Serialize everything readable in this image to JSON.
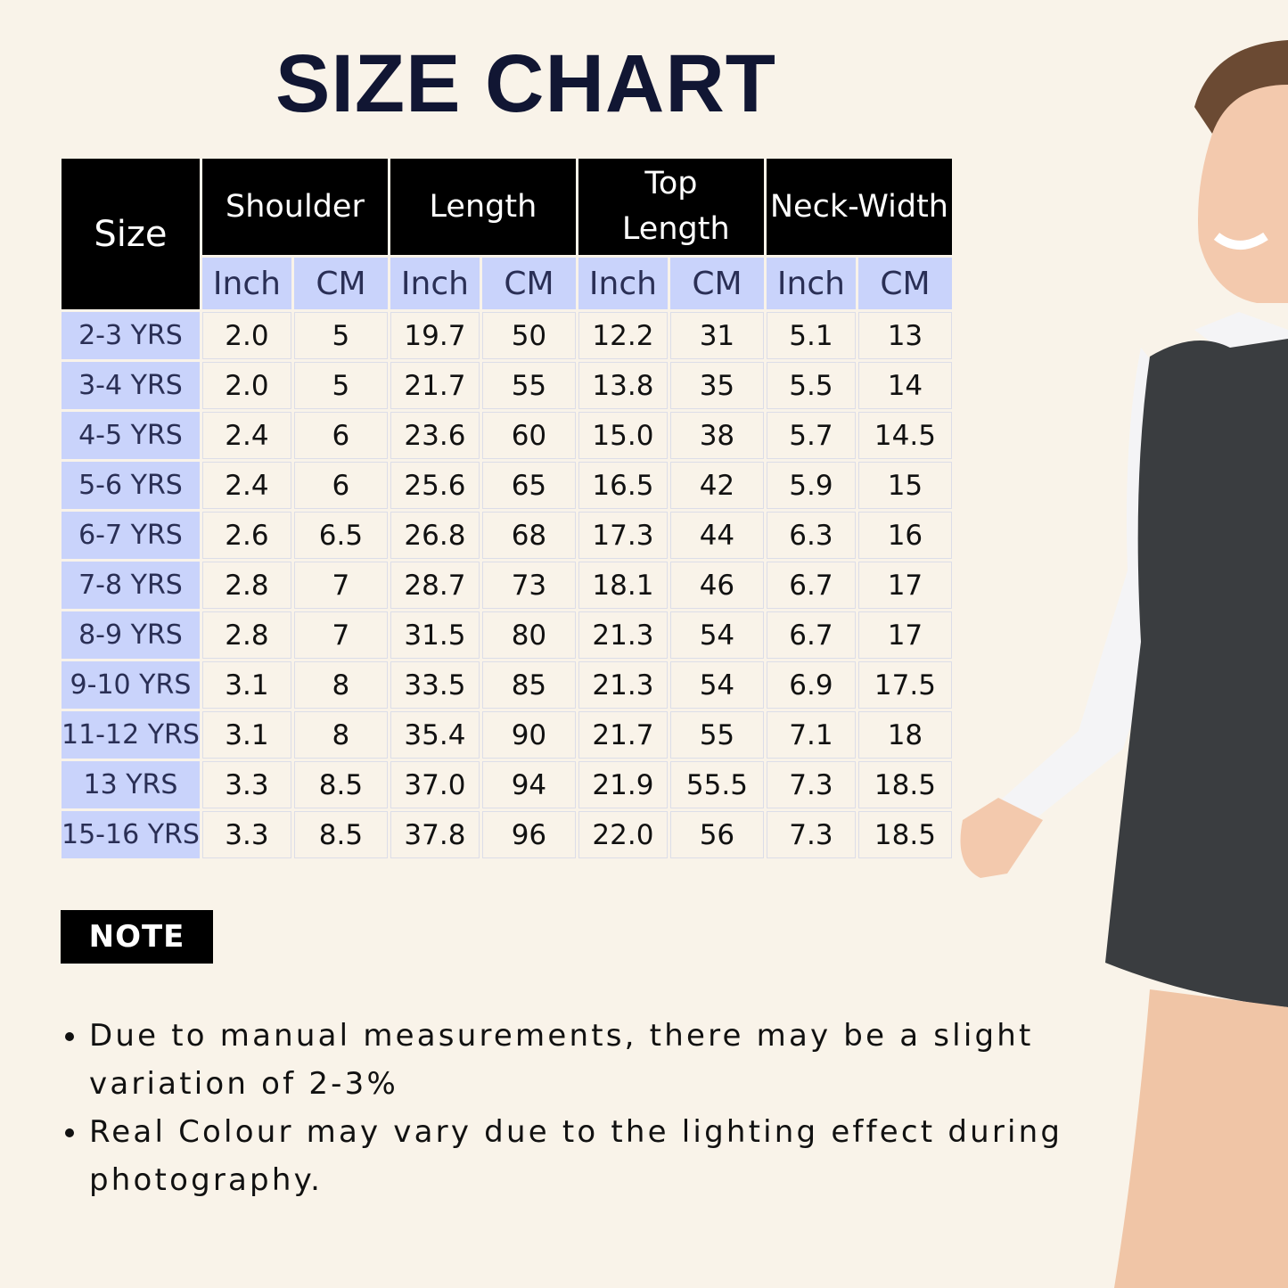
{
  "title": "SIZE CHART",
  "table": {
    "size_header": "Size",
    "groups": [
      "Shoulder",
      "Length",
      "Top Length",
      "Neck-Width"
    ],
    "units": [
      "Inch",
      "CM",
      "Inch",
      "CM",
      "Inch",
      "CM",
      "Inch",
      "CM"
    ],
    "rows": [
      [
        "2-3 YRS",
        "2.0",
        "5",
        "19.7",
        "50",
        "12.2",
        "31",
        "5.1",
        "13"
      ],
      [
        "3-4 YRS",
        "2.0",
        "5",
        "21.7",
        "55",
        "13.8",
        "35",
        "5.5",
        "14"
      ],
      [
        "4-5 YRS",
        "2.4",
        "6",
        "23.6",
        "60",
        "15.0",
        "38",
        "5.7",
        "14.5"
      ],
      [
        "5-6 YRS",
        "2.4",
        "6",
        "25.6",
        "65",
        "16.5",
        "42",
        "5.9",
        "15"
      ],
      [
        "6-7 YRS",
        "2.6",
        "6.5",
        "26.8",
        "68",
        "17.3",
        "44",
        "6.3",
        "16"
      ],
      [
        "7-8 YRS",
        "2.8",
        "7",
        "28.7",
        "73",
        "18.1",
        "46",
        "6.7",
        "17"
      ],
      [
        "8-9 YRS",
        "2.8",
        "7",
        "31.5",
        "80",
        "21.3",
        "54",
        "6.7",
        "17"
      ],
      [
        "9-10 YRS",
        "3.1",
        "8",
        "33.5",
        "85",
        "21.3",
        "54",
        "6.9",
        "17.5"
      ],
      [
        "11-12 YRS",
        "3.1",
        "8",
        "35.4",
        "90",
        "21.7",
        "55",
        "7.1",
        "18"
      ],
      [
        "13 YRS",
        "3.3",
        "8.5",
        "37.0",
        "94",
        "21.9",
        "55.5",
        "7.3",
        "18.5"
      ],
      [
        "15-16 YRS",
        "3.3",
        "8.5",
        "37.8",
        "96",
        "22.0",
        "56",
        "7.3",
        "18.5"
      ]
    ]
  },
  "note": {
    "label": "NOTE",
    "items": [
      "Due to manual measurements, there may be a slight variation of 2-3%",
      "Real Colour may vary due to the lighting effect during photography."
    ]
  },
  "colors": {
    "background": "#f9f3e9",
    "header": "#000000",
    "unit_header": "#c9d3fb",
    "text": "#2a2f55",
    "title": "#111633"
  }
}
